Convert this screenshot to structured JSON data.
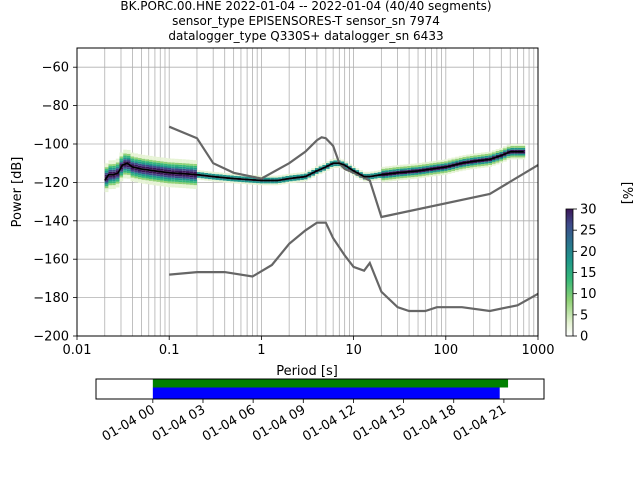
{
  "header": {
    "title_lines": [
      "BK.PORC.00.HNE   2022-01-04 -- 2022-01-04  (40/40 segments)",
      "sensor_type EPISENSORES-T sensor_sn 7974",
      "datalogger_type Q330S+ datalogger_sn 6433"
    ]
  },
  "colors": {
    "noise_model": "#666666",
    "mode_line": "#000000",
    "grid": "#b0b0b0",
    "availability_data": "#008000",
    "availability_gaps": "#0000ff"
  },
  "chart_data": [
    {
      "type": "heatmap",
      "title": "BK.PORC.00.HNE   2022-01-04 -- 2022-01-04  (40/40 segments)",
      "xlabel": "Period [s]",
      "ylabel": "Power [dB]",
      "xscale": "log",
      "xlim": [
        0.01,
        1000
      ],
      "ylim": [
        -200,
        -50
      ],
      "grid": true,
      "x_ticks": [
        "0.01",
        "0.1",
        "1",
        "10",
        "100",
        "1000"
      ],
      "y_ticks": [
        "−60",
        "−80",
        "−100",
        "−120",
        "−140",
        "−160",
        "−180",
        "−200"
      ],
      "colorbar": {
        "label": "[%]",
        "ticks": [
          "0",
          "5",
          "10",
          "15",
          "20",
          "25",
          "30"
        ],
        "range": [
          0,
          30
        ],
        "colormap": "viridis-white-low"
      },
      "series": [
        {
          "name": "",
          "kind": "mode",
          "x": [
            0.02,
            0.022,
            0.025,
            0.028,
            0.031,
            0.035,
            0.04,
            0.05,
            0.07,
            0.1,
            0.15,
            0.2,
            0.3,
            0.5,
            0.7,
            1.0,
            1.5,
            2.0,
            3.0,
            4.0,
            5.0,
            6.0,
            7.0,
            8.0,
            10,
            13,
            15,
            20,
            30,
            50,
            70,
            100,
            150,
            200,
            300,
            400,
            500,
            700
          ],
          "y": [
            -119,
            -116,
            -116,
            -115,
            -111,
            -110,
            -112,
            -113,
            -114,
            -115,
            -115.5,
            -116,
            -117,
            -118,
            -118.5,
            -119,
            -119,
            -118,
            -117,
            -114,
            -112,
            -110,
            -110,
            -111,
            -114,
            -117,
            -117,
            -116,
            -115,
            -114,
            -113,
            -112,
            -110,
            -109,
            -108,
            -106,
            -104,
            -104
          ]
        },
        {
          "name": "",
          "kind": "noise_model_high",
          "x": [
            0.1,
            0.2,
            0.3,
            0.5,
            1.0,
            2.0,
            3.0,
            4.0,
            4.5,
            5.0,
            6.0,
            7.0,
            8.0,
            10,
            15,
            20,
            300,
            1000
          ],
          "y": [
            -91,
            -97,
            -110,
            -115,
            -118,
            -110,
            -104,
            -98,
            -96.5,
            -97,
            -101,
            -110,
            -113,
            -115,
            -119,
            -138,
            -126,
            -111
          ]
        },
        {
          "name": "",
          "kind": "noise_model_low",
          "x": [
            0.1,
            0.2,
            0.4,
            0.8,
            1.3,
            2.0,
            3.0,
            4.0,
            5.0,
            6.0,
            8.0,
            10,
            13,
            15,
            20,
            30,
            40,
            60,
            80,
            100,
            150,
            300,
            600,
            1000
          ],
          "y": [
            -168,
            -166.7,
            -166.7,
            -169,
            -163,
            -152,
            -145,
            -141,
            -141,
            -149,
            -158,
            -164,
            -166,
            -162,
            -177,
            -185,
            -187,
            -187,
            -185,
            -185,
            -185,
            -187,
            -184,
            -178
          ]
        }
      ]
    },
    {
      "type": "bar",
      "title": "",
      "x_ticks": [
        "01-04 00",
        "01-04 03",
        "01-04 06",
        "01-04 09",
        "01-04 12",
        "01-04 15",
        "01-04 18",
        "01-04 21"
      ],
      "x_unit": "hours since 2022-01-04 00:00",
      "xlim": [
        -3.4,
        23.4
      ],
      "series": [
        {
          "name": "",
          "kind": "data_availability",
          "start_hour": 0,
          "end_hour": 21.25
        },
        {
          "name": "",
          "kind": "psd_segments",
          "start_hour": 0,
          "end_hour": 20.75
        }
      ]
    }
  ]
}
